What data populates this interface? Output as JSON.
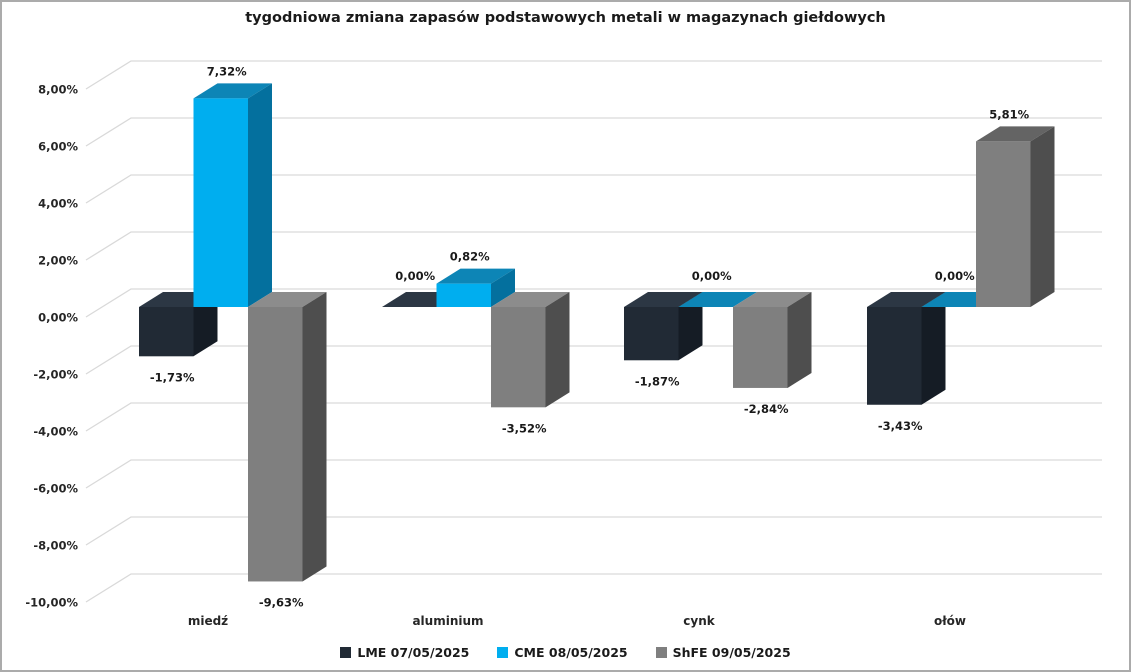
{
  "title": "tygodniowa zmiana zapasów podstawowych metali w magazynach giełdowych",
  "chart_data": {
    "type": "bar",
    "projection": "3d",
    "title": "tygodniowa zmiana zapasów podstawowych metali w magazynach giełdowych",
    "categories": [
      "miedź",
      "aluminium",
      "cynk",
      "ołów"
    ],
    "series": [
      {
        "name": "LME 07/05/2025",
        "values": [
          -1.73,
          0.0,
          -1.87,
          -3.43
        ],
        "labels": [
          "-1,73%",
          "0,00%",
          "-1,87%",
          "-3,43%"
        ],
        "colors": {
          "front": "#212A35",
          "top_positive": "#1A222C",
          "top_zero_negative": "#2C3744",
          "side": "#151C25"
        }
      },
      {
        "name": "CME 08/05/2025",
        "values": [
          7.32,
          0.82,
          0.0,
          0.0
        ],
        "labels": [
          "7,32%",
          "0,82%",
          "0,00%",
          "0,00%"
        ],
        "colors": {
          "front": "#00AEEF",
          "top_positive": "#0D85B6",
          "top_zero_negative": "#0D85B6",
          "side": "#04709E"
        }
      },
      {
        "name": "ShFE 09/05/2025",
        "values": [
          -9.63,
          -3.52,
          -2.84,
          5.81
        ],
        "labels": [
          "-9,63%",
          "-3,52%",
          "-2,84%",
          "5,81%"
        ],
        "colors": {
          "front": "#7F7F7F",
          "top_positive": "#646464",
          "top_zero_negative": "#8C8C8C",
          "side": "#4E4E4E"
        }
      }
    ],
    "y_axis": {
      "unit": "%",
      "min": -10,
      "max": 8,
      "tick_step": 2,
      "ticks": [
        8,
        6,
        4,
        2,
        0,
        -2,
        -4,
        -6,
        -8,
        -10
      ],
      "tick_labels": [
        "8,00%",
        "6,00%",
        "4,00%",
        "2,00%",
        "0,00%",
        "-2,00%",
        "-4,00%",
        "-6,00%",
        "-8,00%",
        "-10,00%"
      ]
    },
    "grid": true,
    "legend_position": "bottom",
    "style_colors": {
      "grid_line": "#D9D9D9",
      "frame_border": "#ABABAB",
      "text": "#262626",
      "background": "#FFFFFF"
    }
  }
}
